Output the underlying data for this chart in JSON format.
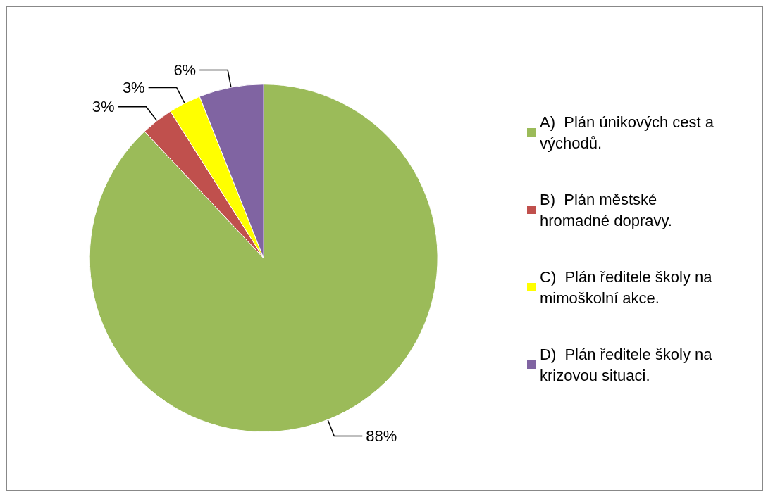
{
  "chart_data": {
    "type": "pie",
    "categories": [
      "A)  Plán únikových cest a východů.",
      "B)  Plán městské hromadné dopravy.",
      "C)  Plán ředitele školy na mimoškolní akce.",
      "D)  Plán ředitele školy na krizovou situaci."
    ],
    "values": [
      88,
      3,
      3,
      6
    ],
    "colors": [
      "#9bbb59",
      "#c0504d",
      "#ffff00",
      "#8064a2"
    ],
    "legend": "right",
    "value_labels": [
      "88%",
      "3%",
      "3%",
      "6%"
    ]
  }
}
